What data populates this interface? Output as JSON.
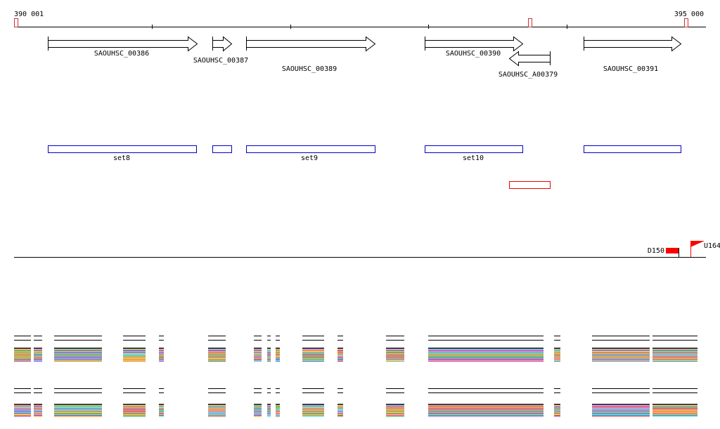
{
  "ruler": {
    "start_label": "390 001",
    "end_label": "395 000"
  },
  "genes": [
    {
      "label": "SAOUHSC_00386"
    },
    {
      "label": "SAOUHSC_00387"
    },
    {
      "label": "SAOUHSC_00389"
    },
    {
      "label": "SAOUHSC_00390"
    },
    {
      "label": "SAOUHSC_A00379"
    },
    {
      "label": "SAOUHSC_00391"
    }
  ],
  "sets": [
    {
      "label": "set8"
    },
    {
      "label": "set9"
    },
    {
      "label": "set10"
    }
  ],
  "markers": [
    {
      "label": "D150"
    },
    {
      "label": "U164"
    }
  ]
}
